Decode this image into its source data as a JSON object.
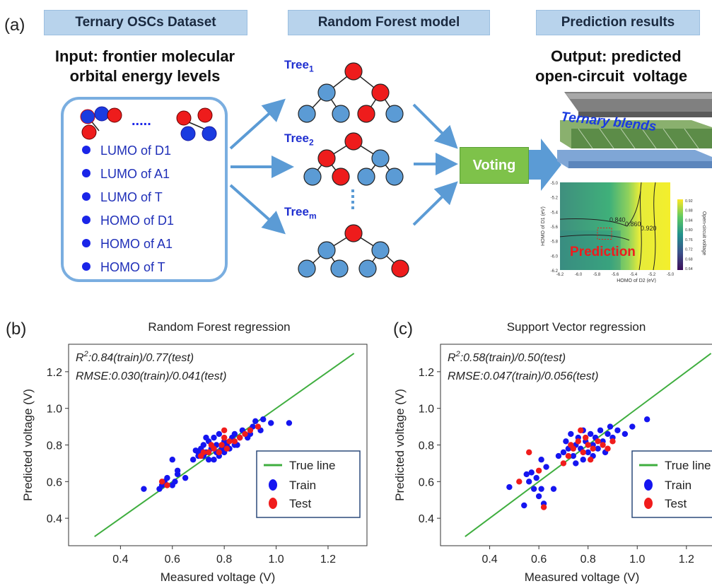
{
  "panel_a": {
    "letter": "(a)",
    "headers": {
      "dataset": "Ternary OSCs Dataset",
      "model": "Random Forest model",
      "results": "Prediction results"
    },
    "input_title_line1": "Input: frontier molecular",
    "input_title_line2": "orbital energy levels",
    "ellipsis": ".....",
    "features": [
      "LUMO of D1",
      "LUMO of A1",
      "LUMO of T",
      "HOMO of D1",
      "HOMO of A1",
      "HOMO of T"
    ],
    "trees": [
      {
        "label": "Tree",
        "sub": "1"
      },
      {
        "label": "Tree",
        "sub": "2"
      },
      {
        "label": "Tree",
        "sub": "m"
      }
    ],
    "voting": "Voting",
    "output_title_line1": "Output: predicted",
    "output_title_line2": "open-circuit  voltage",
    "device_label": "Ternary blends",
    "contour": {
      "ylabel": "HOMO of D1 (eV)",
      "xlabel": "HOMO of D2 (eV)",
      "yticks": [
        "-5.0",
        "-5.2",
        "-5.4",
        "-5.6",
        "-5.8",
        "-6.0",
        "-6.2"
      ],
      "xticks": [
        "-6.2",
        "-6.0",
        "-5.8",
        "-5.6",
        "-5.4",
        "-5.2",
        "-5.0"
      ],
      "cbar_ticks": [
        "0.92",
        "0.88",
        "0.84",
        "0.80",
        "0.76",
        "0.72",
        "0.68",
        "0.64"
      ],
      "cbar_label": "Open-circuit voltage",
      "prediction_label": "Prediction",
      "contour_labels": [
        "0.840",
        "0.860",
        "0.920"
      ]
    }
  },
  "colors": {
    "train": "#1515f0",
    "test": "#f01c1c",
    "true_line": "#3fae3f",
    "node_blue": "#5b9bd5",
    "node_red": "#ee1c1c",
    "arrow": "#5b9bd5"
  },
  "chart_data": [
    {
      "panel": "(b)",
      "type": "scatter",
      "title": "Random Forest regression",
      "xlabel": "Measured voltage (V)",
      "ylabel": "Predicted voltage (V)",
      "xlim": [
        0.2,
        1.35
      ],
      "ylim": [
        0.25,
        1.35
      ],
      "xticks": [
        0.4,
        0.6,
        0.8,
        1.0,
        1.2
      ],
      "yticks": [
        0.4,
        0.6,
        0.8,
        1.0,
        1.2
      ],
      "annotation_line1_prefix": "R",
      "annotation_line1_sup": "2",
      "annotation_line1_rest": ":0.84(train)/0.77(test)",
      "annotation_line2": "RMSE:0.030(train)/0.041(test)",
      "legend": [
        "True line",
        "Train",
        "Test"
      ],
      "legend_position": "lower-right",
      "true_line": [
        [
          0.3,
          0.3
        ],
        [
          1.3,
          1.3
        ]
      ],
      "series": [
        {
          "name": "Train",
          "points": [
            [
              0.49,
              0.56
            ],
            [
              0.55,
              0.56
            ],
            [
              0.56,
              0.58
            ],
            [
              0.57,
              0.6
            ],
            [
              0.58,
              0.62
            ],
            [
              0.6,
              0.58
            ],
            [
              0.61,
              0.6
            ],
            [
              0.62,
              0.64
            ],
            [
              0.62,
              0.66
            ],
            [
              0.6,
              0.72
            ],
            [
              0.65,
              0.62
            ],
            [
              0.68,
              0.72
            ],
            [
              0.7,
              0.74
            ],
            [
              0.7,
              0.76
            ],
            [
              0.71,
              0.78
            ],
            [
              0.72,
              0.74
            ],
            [
              0.72,
              0.8
            ],
            [
              0.73,
              0.76
            ],
            [
              0.74,
              0.82
            ],
            [
              0.75,
              0.78
            ],
            [
              0.76,
              0.84
            ],
            [
              0.77,
              0.76
            ],
            [
              0.77,
              0.8
            ],
            [
              0.78,
              0.74
            ],
            [
              0.78,
              0.86
            ],
            [
              0.79,
              0.78
            ],
            [
              0.8,
              0.82
            ],
            [
              0.8,
              0.76
            ],
            [
              0.81,
              0.8
            ],
            [
              0.82,
              0.78
            ],
            [
              0.83,
              0.84
            ],
            [
              0.84,
              0.86
            ],
            [
              0.85,
              0.8
            ],
            [
              0.86,
              0.84
            ],
            [
              0.87,
              0.88
            ],
            [
              0.88,
              0.86
            ],
            [
              0.89,
              0.84
            ],
            [
              0.9,
              0.86
            ],
            [
              0.91,
              0.9
            ],
            [
              0.92,
              0.93
            ],
            [
              0.94,
              0.88
            ],
            [
              0.95,
              0.94
            ],
            [
              0.98,
              0.92
            ],
            [
              0.74,
              0.72
            ],
            [
              0.76,
              0.72
            ],
            [
              0.69,
              0.77
            ],
            [
              0.73,
              0.84
            ],
            [
              0.84,
              0.8
            ],
            [
              1.05,
              0.92
            ],
            [
              0.8,
              0.8
            ]
          ]
        },
        {
          "name": "Test",
          "points": [
            [
              0.56,
              0.6
            ],
            [
              0.58,
              0.58
            ],
            [
              0.72,
              0.76
            ],
            [
              0.74,
              0.76
            ],
            [
              0.76,
              0.78
            ],
            [
              0.78,
              0.76
            ],
            [
              0.79,
              0.8
            ],
            [
              0.8,
              0.84
            ],
            [
              0.81,
              0.78
            ],
            [
              0.82,
              0.82
            ],
            [
              0.84,
              0.82
            ],
            [
              0.86,
              0.84
            ],
            [
              0.88,
              0.86
            ],
            [
              0.9,
              0.88
            ],
            [
              0.93,
              0.9
            ],
            [
              0.8,
              0.88
            ],
            [
              0.75,
              0.8
            ],
            [
              0.71,
              0.74
            ]
          ]
        }
      ]
    },
    {
      "panel": "(c)",
      "type": "scatter",
      "title": "Support Vector regression",
      "xlabel": "Measured voltage (V)",
      "ylabel": "Predicted voltage (V)",
      "xlim": [
        0.2,
        1.35
      ],
      "ylim": [
        0.25,
        1.35
      ],
      "xticks": [
        0.4,
        0.6,
        0.8,
        1.0,
        1.2
      ],
      "yticks": [
        0.4,
        0.6,
        0.8,
        1.0,
        1.2
      ],
      "annotation_line1_prefix": "R",
      "annotation_line1_sup": "2",
      "annotation_line1_rest": ":0.58(train)/0.50(test)",
      "annotation_line2": "RMSE:0.047(train)/0.056(test)",
      "legend": [
        "True line",
        "Train",
        "Test"
      ],
      "legend_position": "lower-right",
      "true_line": [
        [
          0.3,
          0.3
        ],
        [
          1.3,
          1.3
        ]
      ],
      "series": [
        {
          "name": "Train",
          "points": [
            [
              0.48,
              0.57
            ],
            [
              0.54,
              0.47
            ],
            [
              0.55,
              0.64
            ],
            [
              0.56,
              0.6
            ],
            [
              0.57,
              0.65
            ],
            [
              0.58,
              0.56
            ],
            [
              0.59,
              0.62
            ],
            [
              0.6,
              0.52
            ],
            [
              0.61,
              0.56
            ],
            [
              0.61,
              0.72
            ],
            [
              0.62,
              0.48
            ],
            [
              0.63,
              0.68
            ],
            [
              0.66,
              0.56
            ],
            [
              0.68,
              0.74
            ],
            [
              0.7,
              0.76
            ],
            [
              0.71,
              0.82
            ],
            [
              0.72,
              0.78
            ],
            [
              0.73,
              0.86
            ],
            [
              0.74,
              0.74
            ],
            [
              0.75,
              0.8
            ],
            [
              0.76,
              0.84
            ],
            [
              0.77,
              0.78
            ],
            [
              0.78,
              0.88
            ],
            [
              0.78,
              0.72
            ],
            [
              0.79,
              0.82
            ],
            [
              0.8,
              0.76
            ],
            [
              0.81,
              0.86
            ],
            [
              0.82,
              0.8
            ],
            [
              0.83,
              0.84
            ],
            [
              0.84,
              0.78
            ],
            [
              0.85,
              0.88
            ],
            [
              0.86,
              0.82
            ],
            [
              0.87,
              0.76
            ],
            [
              0.88,
              0.86
            ],
            [
              0.89,
              0.9
            ],
            [
              0.9,
              0.84
            ],
            [
              0.92,
              0.88
            ],
            [
              0.95,
              0.86
            ],
            [
              0.98,
              0.9
            ],
            [
              1.04,
              0.94
            ],
            [
              0.75,
              0.7
            ],
            [
              0.82,
              0.74
            ]
          ]
        },
        {
          "name": "Test",
          "points": [
            [
              0.52,
              0.6
            ],
            [
              0.56,
              0.76
            ],
            [
              0.6,
              0.66
            ],
            [
              0.62,
              0.46
            ],
            [
              0.7,
              0.7
            ],
            [
              0.72,
              0.74
            ],
            [
              0.74,
              0.78
            ],
            [
              0.76,
              0.82
            ],
            [
              0.78,
              0.76
            ],
            [
              0.79,
              0.84
            ],
            [
              0.8,
              0.8
            ],
            [
              0.81,
              0.72
            ],
            [
              0.82,
              0.78
            ],
            [
              0.84,
              0.82
            ],
            [
              0.86,
              0.8
            ],
            [
              0.88,
              0.78
            ],
            [
              0.9,
              0.82
            ],
            [
              0.77,
              0.88
            ],
            [
              0.73,
              0.8
            ]
          ]
        }
      ]
    }
  ]
}
